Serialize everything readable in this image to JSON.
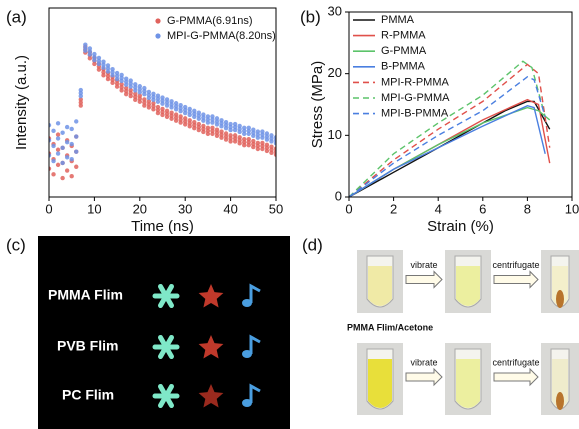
{
  "chart_data": [
    {
      "type": "scatter",
      "panel_label": "(a)",
      "xlabel": "Time (ns)",
      "ylabel": "Intensity (a.u.)",
      "xlim": [
        0,
        50
      ],
      "xticks": [
        0,
        10,
        20,
        30,
        40,
        50
      ],
      "ylim": [
        0,
        1
      ],
      "legend": "upper right",
      "x": [
        0,
        1,
        2,
        3,
        4,
        5,
        6,
        7,
        8,
        9,
        10,
        11,
        12,
        13,
        14,
        15,
        16,
        17,
        18,
        19,
        20,
        21,
        22,
        23,
        24,
        25,
        26,
        27,
        28,
        29,
        30,
        31,
        32,
        33,
        34,
        35,
        36,
        37,
        38,
        39,
        40,
        41,
        42,
        43,
        44,
        45,
        46,
        47,
        48,
        49,
        50
      ],
      "series": [
        {
          "name": "G-PMMA(6.91ns)",
          "color": "#e0625c",
          "values": [
            0.23,
            0.2,
            0.25,
            0.18,
            0.22,
            0.19,
            0.24,
            0.5,
            0.78,
            0.75,
            0.72,
            0.69,
            0.66,
            0.64,
            0.62,
            0.6,
            0.58,
            0.56,
            0.55,
            0.53,
            0.52,
            0.5,
            0.49,
            0.48,
            0.46,
            0.45,
            0.44,
            0.43,
            0.42,
            0.41,
            0.4,
            0.39,
            0.38,
            0.37,
            0.36,
            0.35,
            0.35,
            0.34,
            0.33,
            0.32,
            0.31,
            0.31,
            0.3,
            0.29,
            0.29,
            0.28,
            0.27,
            0.27,
            0.26,
            0.25,
            0.24
          ]
        },
        {
          "name": "MPI-G-PMMA(8.20ns)",
          "color": "#6f93e6",
          "values": [
            0.3,
            0.27,
            0.31,
            0.26,
            0.29,
            0.28,
            0.32,
            0.55,
            0.79,
            0.77,
            0.74,
            0.72,
            0.7,
            0.68,
            0.66,
            0.64,
            0.63,
            0.61,
            0.6,
            0.58,
            0.57,
            0.56,
            0.54,
            0.53,
            0.52,
            0.51,
            0.5,
            0.49,
            0.48,
            0.47,
            0.46,
            0.45,
            0.44,
            0.43,
            0.42,
            0.41,
            0.41,
            0.4,
            0.39,
            0.38,
            0.37,
            0.37,
            0.36,
            0.35,
            0.35,
            0.34,
            0.33,
            0.33,
            0.32,
            0.31,
            0.3
          ]
        }
      ]
    },
    {
      "type": "line",
      "panel_label": "(b)",
      "xlabel": "Strain (%)",
      "ylabel": "Stress (MPa)",
      "xlim": [
        0,
        10
      ],
      "xticks": [
        0,
        2,
        4,
        6,
        8,
        10
      ],
      "ylim": [
        0,
        30
      ],
      "yticks": [
        0,
        10,
        20,
        30
      ],
      "legend": "upper left",
      "series": [
        {
          "name": "PMMA",
          "color": "#111111",
          "dashed": false,
          "x": [
            0,
            2,
            4,
            6,
            7,
            8,
            8.3,
            9
          ],
          "values": [
            0,
            4,
            8,
            12,
            14,
            15.5,
            15.5,
            11
          ]
        },
        {
          "name": "R-PMMA",
          "color": "#e0504a",
          "dashed": false,
          "x": [
            0,
            2,
            4,
            6,
            8,
            8.5,
            9
          ],
          "values": [
            0,
            4.5,
            8.5,
            12.5,
            15.8,
            15,
            5.5
          ]
        },
        {
          "name": "G-PMMA",
          "color": "#5cc36a",
          "dashed": false,
          "x": [
            0,
            2,
            4,
            6,
            8,
            8.5,
            9
          ],
          "values": [
            0,
            4.5,
            8.5,
            12,
            14.5,
            14,
            12.5
          ]
        },
        {
          "name": "B-PMMA",
          "color": "#4a7fe0",
          "dashed": false,
          "x": [
            0,
            2,
            4,
            6,
            8,
            8.3,
            8.8
          ],
          "values": [
            0,
            4.5,
            8,
            11.5,
            14.8,
            14.5,
            7
          ]
        },
        {
          "name": "MPI-R-PMMA",
          "color": "#e0504a",
          "dashed": true,
          "x": [
            0,
            2,
            4,
            6,
            8,
            8.5,
            9
          ],
          "values": [
            0,
            6,
            11,
            15.5,
            21.5,
            20,
            8
          ]
        },
        {
          "name": "MPI-G-PMMA",
          "color": "#5cc36a",
          "dashed": true,
          "x": [
            0,
            2,
            4,
            6,
            7.8,
            8.2,
            8.8
          ],
          "values": [
            0,
            7,
            12,
            16.5,
            22,
            21,
            13
          ]
        },
        {
          "name": "MPI-B-PMMA",
          "color": "#4a7fe0",
          "dashed": true,
          "x": [
            0,
            2,
            4,
            6,
            8,
            8.3,
            8.8
          ],
          "values": [
            0,
            5.5,
            10,
            14,
            19.5,
            19,
            13
          ]
        }
      ]
    }
  ],
  "photos": {
    "c": {
      "label": "(c)",
      "rows": [
        "PMMA Flim",
        "PVB Flim",
        "PC Flim"
      ]
    },
    "d": {
      "label": "(d)",
      "steps": [
        "vibrate",
        "centrifugate"
      ],
      "caption": "PMMA Flim/Acetone"
    }
  }
}
